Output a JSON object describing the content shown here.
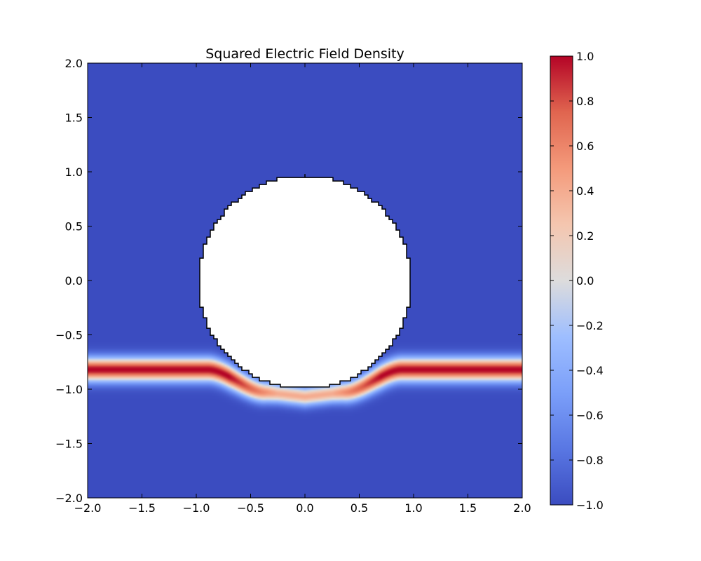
{
  "chart_data": {
    "type": "heatmap",
    "title": "Squared Electric Field Density",
    "xlabel": "",
    "ylabel": "",
    "xlim": [
      -2.0,
      2.0
    ],
    "ylim": [
      -2.0,
      2.0
    ],
    "x_tick_labels": [
      "−2.0",
      "−1.5",
      "−1.0",
      "−0.5",
      "0.0",
      "0.5",
      "1.0",
      "1.5",
      "2.0"
    ],
    "x_tick_values": [
      -2.0,
      -1.5,
      -1.0,
      -0.5,
      0.0,
      0.5,
      1.0,
      1.5,
      2.0
    ],
    "y_tick_labels": [
      "−2.0",
      "−1.5",
      "−1.0",
      "−0.5",
      "0.0",
      "0.5",
      "1.0",
      "1.5",
      "2.0"
    ],
    "y_tick_values": [
      -2.0,
      -1.5,
      -1.0,
      -0.5,
      0.0,
      0.5,
      1.0,
      1.5,
      2.0
    ],
    "colormap": "coolwarm",
    "color_range": [
      -1.0,
      1.0
    ],
    "colorbar_tick_labels": [
      "1.0",
      "0.8",
      "0.6",
      "0.4",
      "0.2",
      "0.0",
      "−0.2",
      "−0.4",
      "−0.6",
      "−0.8",
      "−1.0"
    ],
    "colorbar_tick_values": [
      1.0,
      0.8,
      0.6,
      0.4,
      0.2,
      0.0,
      -0.2,
      -0.4,
      -0.6,
      -0.8,
      -1.0
    ],
    "masked_region": {
      "shape": "circle",
      "center": [
        0.0,
        0.0
      ],
      "radius": 0.98
    },
    "field": {
      "background_value": -1.0,
      "waveguide_center_y": -0.82,
      "waveguide_peak_value": 1.0,
      "bend_bottom_y": -1.07,
      "bend_peak_value": 0.4
    },
    "grid": false
  }
}
